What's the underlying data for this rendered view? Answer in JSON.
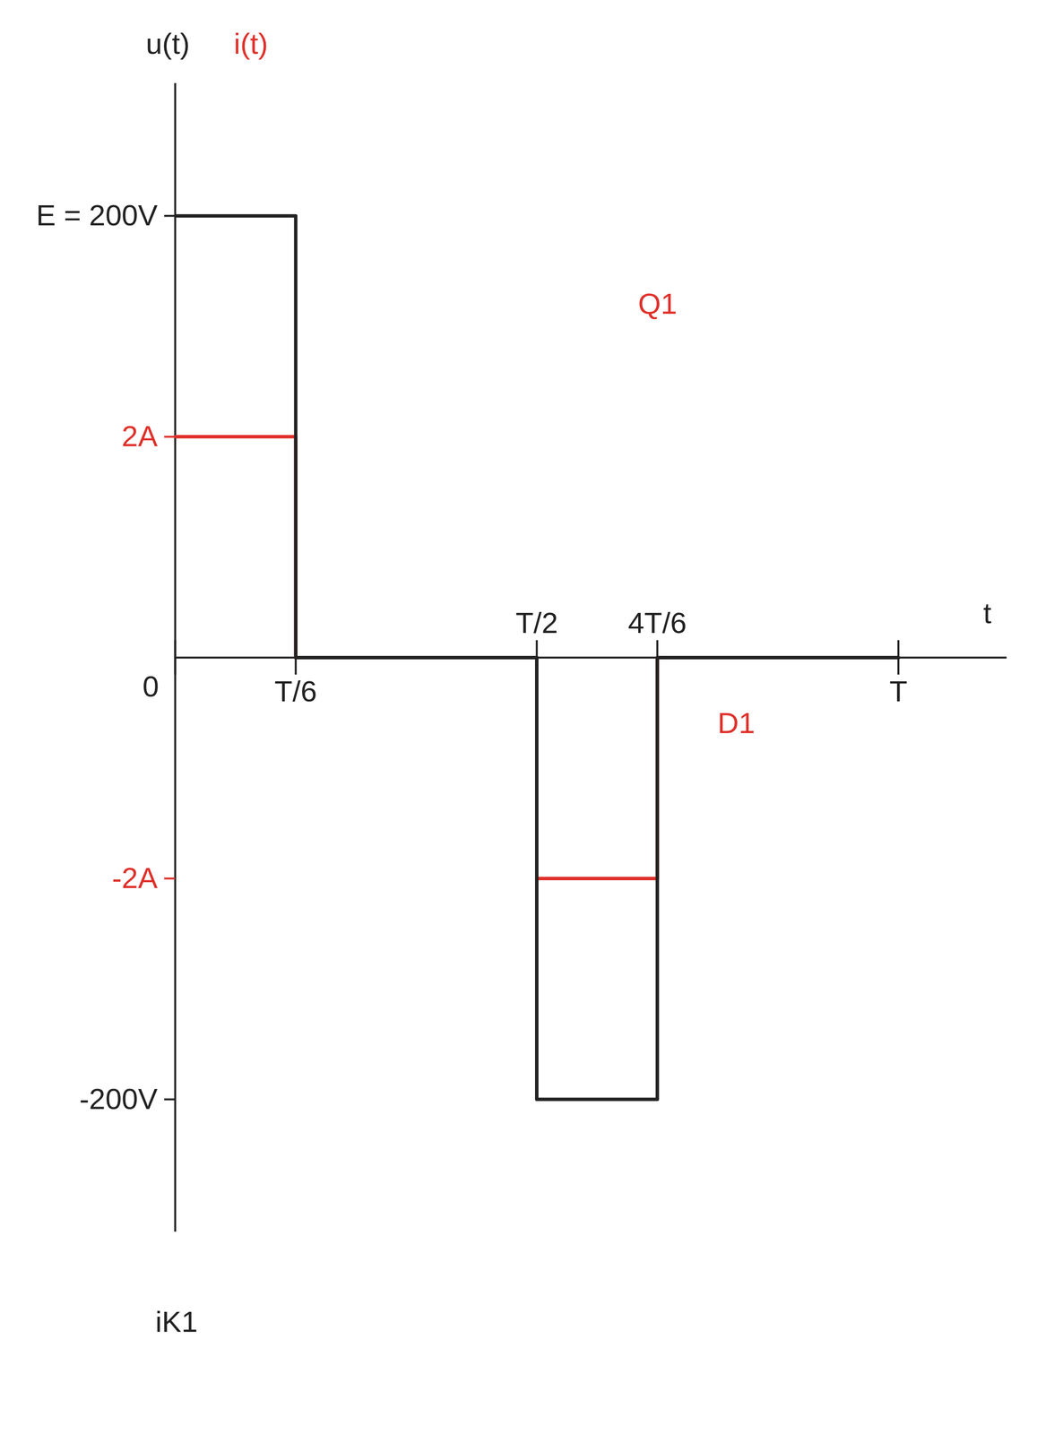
{
  "chart_data": {
    "type": "line",
    "xlabel": "t",
    "x": [
      0,
      0.1667,
      0.5,
      0.6667,
      1
    ],
    "series": [
      {
        "name": "u(t)",
        "color": "#222222",
        "values": [
          200,
          0,
          -200,
          0,
          0
        ],
        "line_style": "step"
      },
      {
        "name": "i(t)",
        "color": "#e0302a",
        "values": [
          2,
          0,
          -2,
          0,
          0
        ],
        "line_style": "step",
        "axis": "y2"
      }
    ],
    "xlim": [
      0,
      1.15
    ],
    "xticks": [
      0,
      {
        "value": 0.1667,
        "label": "T/6"
      },
      {
        "value": 0.5,
        "label": "T/2"
      },
      {
        "value": 0.6667,
        "label": "4T/6"
      },
      {
        "value": 1,
        "label": "T"
      }
    ],
    "ylim": [
      -260,
      260
    ],
    "yticks": [
      {
        "value": 200,
        "label": "E = 200V"
      },
      {
        "value": -200,
        "label": "-200V"
      }
    ],
    "y2lim": [
      -5.2,
      5.2
    ],
    "y2ticks": [
      {
        "value": 2,
        "label": "2A"
      },
      {
        "value": -2,
        "label": "-2A"
      }
    ],
    "annotations": [
      {
        "text": "Q1",
        "x": 0.64,
        "y": 160,
        "color": "#e0302a"
      },
      {
        "text": "D1",
        "x": 0.75,
        "y": -30,
        "color": "#e0302a"
      }
    ],
    "caption": "iK1",
    "grid": false
  }
}
